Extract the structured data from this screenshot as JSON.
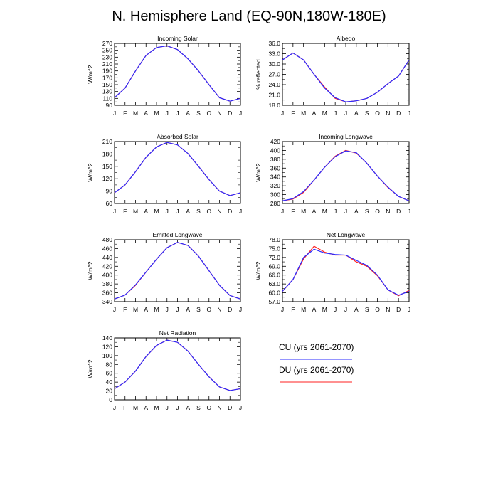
{
  "title": "N. Hemisphere Land (EQ-90N,180W-180E)",
  "colors": {
    "CU": "#2b2bff",
    "DU": "#ff2020"
  },
  "legend": [
    {
      "label": "CU (yrs 2061-2070)",
      "color": "#2b2bff"
    },
    {
      "label": "DU (yrs 2061-2070)",
      "color": "#ff2020"
    }
  ],
  "chart_data": [
    {
      "type": "line",
      "title": "Incoming Solar",
      "ylabel": "W/m^2",
      "categories": [
        "J",
        "F",
        "M",
        "A",
        "M",
        "J",
        "J",
        "A",
        "S",
        "O",
        "N",
        "D",
        "J"
      ],
      "ylim": [
        90,
        270
      ],
      "yticks": [
        "90",
        "110",
        "130",
        "150",
        "170",
        "190",
        "210",
        "230",
        "250",
        "270"
      ],
      "series": [
        {
          "name": "CU (yrs 2061-2070)",
          "values": [
            112,
            140,
            190,
            235,
            258,
            263,
            252,
            225,
            190,
            150,
            112,
            102,
            110
          ]
        },
        {
          "name": "DU (yrs 2061-2070)",
          "values": [
            112,
            140,
            190,
            235,
            258,
            263,
            252,
            225,
            190,
            150,
            112,
            102,
            110
          ]
        }
      ]
    },
    {
      "type": "line",
      "title": "Albedo",
      "ylabel": "% reflected",
      "categories": [
        "J",
        "F",
        "M",
        "A",
        "M",
        "J",
        "J",
        "A",
        "S",
        "O",
        "N",
        "D",
        "J"
      ],
      "ylim": [
        18,
        36
      ],
      "yticks": [
        "18.0",
        "21.0",
        "24.0",
        "27.0",
        "30.0",
        "33.0",
        "36.0"
      ],
      "series": [
        {
          "name": "CU (yrs 2061-2070)",
          "values": [
            31.2,
            33.2,
            31.2,
            27.0,
            23.0,
            20.2,
            19.0,
            19.3,
            20.0,
            21.8,
            24.3,
            26.5,
            31.2
          ]
        },
        {
          "name": "DU (yrs 2061-2070)",
          "values": [
            31.2,
            33.2,
            31.2,
            27.0,
            23.3,
            20.0,
            19.0,
            19.3,
            20.0,
            21.8,
            24.3,
            26.5,
            31.2
          ]
        }
      ]
    },
    {
      "type": "line",
      "title": "Absorbed Solar",
      "ylabel": "W/m^2",
      "categories": [
        "J",
        "F",
        "M",
        "A",
        "M",
        "J",
        "J",
        "A",
        "S",
        "O",
        "N",
        "D",
        "J"
      ],
      "ylim": [
        60,
        210
      ],
      "yticks": [
        "60",
        "90",
        "120",
        "150",
        "180",
        "210"
      ],
      "series": [
        {
          "name": "CU (yrs 2061-2070)",
          "values": [
            86,
            105,
            137,
            172,
            197,
            208,
            202,
            181,
            150,
            118,
            90,
            79,
            86
          ]
        },
        {
          "name": "DU (yrs 2061-2070)",
          "values": [
            86,
            105,
            137,
            172,
            197,
            208,
            202,
            181,
            150,
            118,
            90,
            79,
            86
          ]
        }
      ]
    },
    {
      "type": "line",
      "title": "Incoming Longwave",
      "ylabel": "W/m^2",
      "categories": [
        "J",
        "F",
        "M",
        "A",
        "M",
        "J",
        "J",
        "A",
        "S",
        "O",
        "N",
        "D",
        "J"
      ],
      "ylim": [
        280,
        420
      ],
      "yticks": [
        "280",
        "300",
        "320",
        "340",
        "360",
        "380",
        "400",
        "420"
      ],
      "series": [
        {
          "name": "CU (yrs 2061-2070)",
          "values": [
            286,
            291,
            307,
            333,
            362,
            386,
            399,
            395,
            371,
            342,
            317,
            296,
            286
          ]
        },
        {
          "name": "DU (yrs 2061-2070)",
          "values": [
            286,
            290,
            305,
            333,
            362,
            387,
            400,
            394,
            371,
            342,
            316,
            296,
            286
          ]
        }
      ]
    },
    {
      "type": "line",
      "title": "Emitted Longwave",
      "ylabel": "W/m^2",
      "categories": [
        "J",
        "F",
        "M",
        "A",
        "M",
        "J",
        "J",
        "A",
        "S",
        "O",
        "N",
        "D",
        "J"
      ],
      "ylim": [
        340,
        480
      ],
      "yticks": [
        "340",
        "360",
        "380",
        "400",
        "420",
        "440",
        "460",
        "480"
      ],
      "series": [
        {
          "name": "CU (yrs 2061-2070)",
          "values": [
            346,
            355,
            378,
            407,
            436,
            462,
            474,
            467,
            443,
            410,
            377,
            354,
            346
          ]
        },
        {
          "name": "DU (yrs 2061-2070)",
          "values": [
            346,
            355,
            377,
            407,
            436,
            462,
            474,
            467,
            443,
            410,
            377,
            354,
            346
          ]
        }
      ]
    },
    {
      "type": "line",
      "title": "Net Longwave",
      "ylabel": "W/m^2",
      "categories": [
        "J",
        "F",
        "M",
        "A",
        "M",
        "J",
        "J",
        "A",
        "S",
        "O",
        "N",
        "D",
        "J"
      ],
      "ylim": [
        57,
        78
      ],
      "yticks": [
        "57.0",
        "60.0",
        "63.0",
        "66.0",
        "69.0",
        "72.0",
        "75.0",
        "78.0"
      ],
      "series": [
        {
          "name": "CU (yrs 2061-2070)",
          "values": [
            60.5,
            64.5,
            72.0,
            74.8,
            73.5,
            73.0,
            72.8,
            71.0,
            69.3,
            66.0,
            61.0,
            59.2,
            60.5
          ]
        },
        {
          "name": "DU (yrs 2061-2070)",
          "values": [
            60.5,
            64.5,
            71.5,
            75.8,
            73.8,
            72.8,
            72.8,
            70.5,
            69.0,
            65.8,
            61.0,
            59.0,
            60.8
          ]
        }
      ]
    },
    {
      "type": "line",
      "title": "Net Radiation",
      "ylabel": "W/m^2",
      "categories": [
        "J",
        "F",
        "M",
        "A",
        "M",
        "J",
        "J",
        "A",
        "S",
        "O",
        "N",
        "D",
        "J"
      ],
      "ylim": [
        0,
        140
      ],
      "yticks": [
        "0",
        "20",
        "40",
        "60",
        "80",
        "100",
        "120",
        "140"
      ],
      "series": [
        {
          "name": "CU (yrs 2061-2070)",
          "values": [
            25,
            40,
            65,
            98,
            123,
            135,
            130,
            110,
            80,
            52,
            29,
            21,
            25
          ]
        },
        {
          "name": "DU (yrs 2061-2070)",
          "values": [
            25,
            40,
            65,
            98,
            123,
            135,
            130,
            110,
            80,
            52,
            29,
            21,
            25
          ]
        }
      ]
    }
  ]
}
